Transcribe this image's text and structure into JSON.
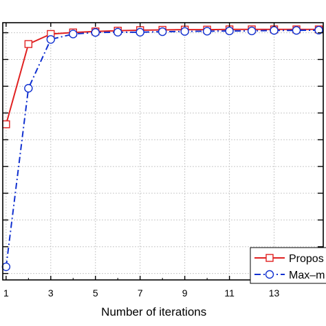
{
  "chart_data": {
    "type": "line",
    "xlabel": "Number of iterations",
    "ylabel": "",
    "title": "",
    "xlim": [
      0.85,
      15.2
    ],
    "ylim": [
      0.0,
      1.0
    ],
    "xticks": [
      1,
      3,
      5,
      7,
      9,
      11,
      13
    ],
    "yticks": [
      0.025,
      0.129,
      0.233,
      0.337,
      0.441,
      0.545,
      0.649,
      0.753,
      0.857,
      0.961
    ],
    "grid": true,
    "legend_position": "bottom-right",
    "series": [
      {
        "name": "Propos",
        "color": "#e02020",
        "line_style": "solid",
        "marker": "square",
        "x": [
          1,
          2,
          3,
          4,
          5,
          6,
          7,
          8,
          9,
          10,
          11,
          12,
          13,
          14,
          15
        ],
        "y": [
          0.605,
          0.917,
          0.956,
          0.962,
          0.966,
          0.969,
          0.971,
          0.972,
          0.973,
          0.973,
          0.974,
          0.974,
          0.974,
          0.974,
          0.974
        ]
      },
      {
        "name": "Max–m",
        "color": "#1030d0",
        "line_style": "dashdot",
        "marker": "circle",
        "x": [
          1,
          2,
          3,
          4,
          5,
          6,
          7,
          8,
          9,
          10,
          11,
          12,
          13,
          14,
          15
        ],
        "y": [
          0.051,
          0.745,
          0.935,
          0.956,
          0.962,
          0.963,
          0.963,
          0.965,
          0.966,
          0.967,
          0.968,
          0.968,
          0.97,
          0.97,
          0.971
        ]
      }
    ]
  }
}
